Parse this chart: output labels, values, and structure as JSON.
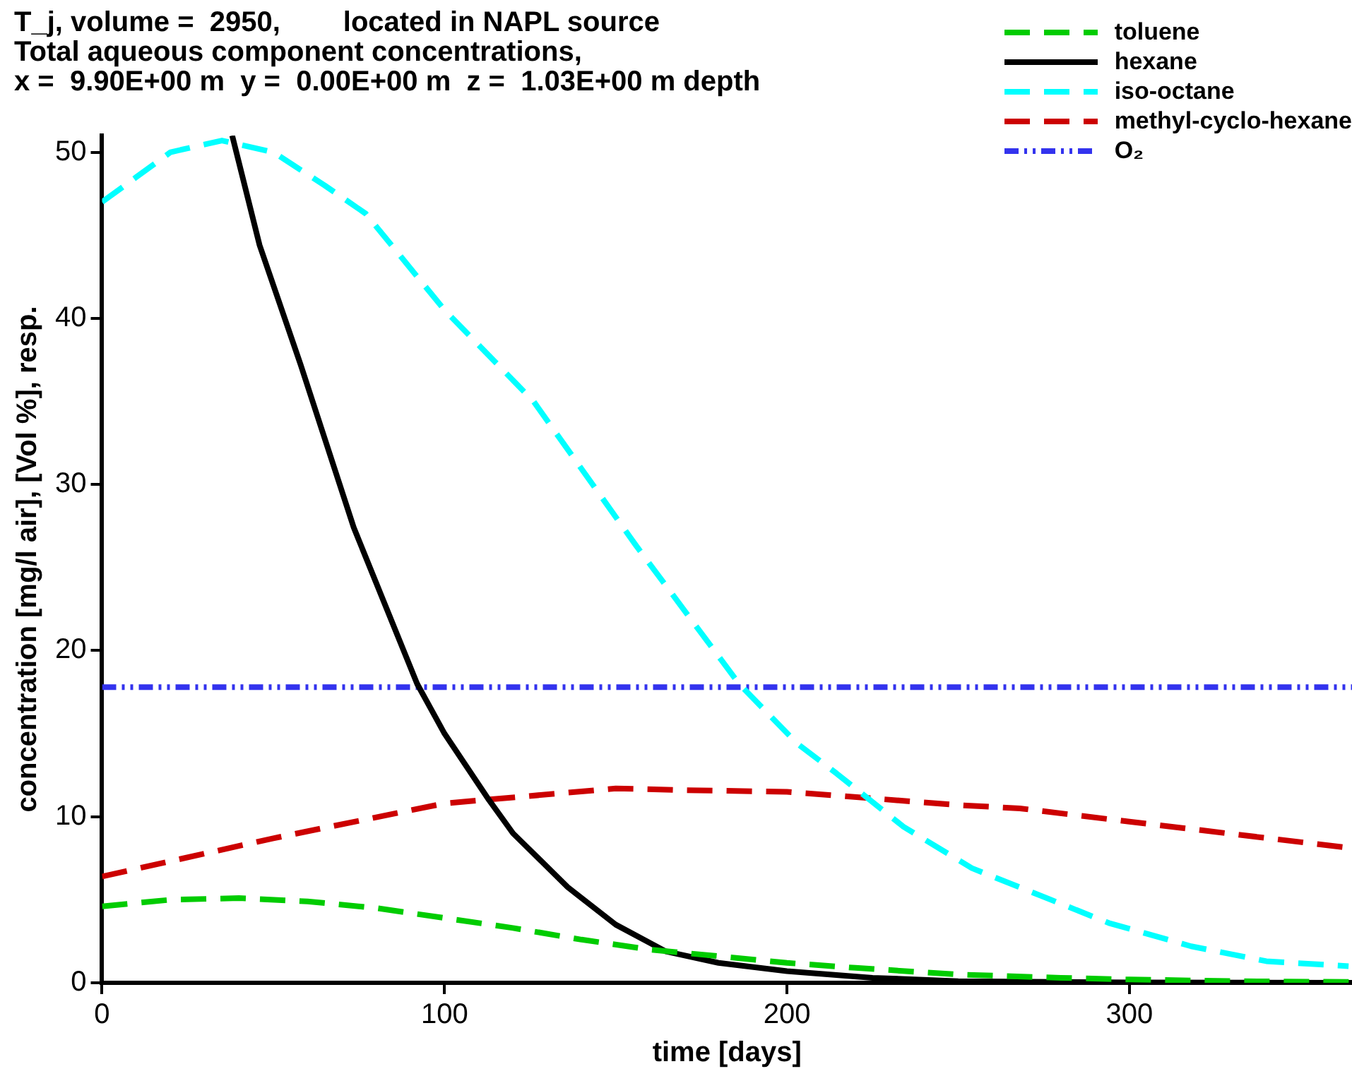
{
  "chart_data": {
    "type": "line",
    "title": "T_j, volume =  2950,        located in NAPL source\nTotal aqueous component concentrations,\nx =  9.90E+00 m  y =  0.00E+00 m  z =  1.03E+00 m depth",
    "xlabel": "time [days]",
    "ylabel": "concentration [mg/l air], [Vol %], resp.",
    "xlim": [
      0,
      365
    ],
    "ylim": [
      0,
      51
    ],
    "xticks": [
      0,
      100,
      200,
      300
    ],
    "yticks": [
      0,
      10,
      20,
      30,
      40,
      50
    ],
    "grid": false,
    "legend": "top right",
    "marker": "none",
    "series": [
      {
        "name": "toluene",
        "color": "#00cc00",
        "line_style": "dashed",
        "x": [
          0,
          20,
          40,
          60,
          80,
          100,
          120,
          140,
          160,
          180,
          200,
          220,
          250,
          280,
          300,
          330,
          365
        ],
        "values": [
          4.6,
          5.0,
          5.1,
          4.9,
          4.5,
          3.9,
          3.3,
          2.6,
          2.0,
          1.6,
          1.2,
          0.9,
          0.5,
          0.3,
          0.2,
          0.1,
          0.05
        ]
      },
      {
        "name": "hexane",
        "color": "#000000",
        "line_style": "solid",
        "x": [
          38,
          46,
          58,
          73.5,
          92,
          100,
          113,
          120,
          136,
          150,
          164.5,
          180,
          200,
          225,
          250,
          300,
          365
        ],
        "values": [
          51,
          44.4,
          37.2,
          27.4,
          18,
          15,
          11,
          9,
          5.75,
          3.5,
          1.9,
          1.2,
          0.7,
          0.3,
          0.1,
          0.02,
          0
        ]
      },
      {
        "name": "iso-octane",
        "color": "#00ffff",
        "line_style": "dashed",
        "x": [
          0,
          10,
          20,
          35,
          50,
          65,
          77,
          100,
          126,
          156,
          186,
          203,
          214.5,
          234,
          254,
          271,
          294,
          318,
          340,
          364
        ],
        "values": [
          47,
          48.5,
          50,
          50.7,
          50,
          48,
          46.3,
          40.5,
          35,
          26.3,
          18,
          14.4,
          12.6,
          9.4,
          6.9,
          5.5,
          3.6,
          2.2,
          1.3,
          1.0
        ]
      },
      {
        "name": "methyl-cyclo-hexane",
        "color": "#cc0000",
        "line_style": "dashed",
        "x": [
          0,
          50,
          100,
          150,
          169,
          200,
          250,
          268,
          300,
          365
        ],
        "values": [
          6.4,
          8.7,
          10.8,
          11.7,
          11.6,
          11.5,
          10.7,
          10.5,
          9.7,
          8.1
        ]
      },
      {
        "name": "O₂",
        "color": "#3333ee",
        "line_style": "dotted",
        "x": [
          0,
          365
        ],
        "values": [
          17.8,
          17.8
        ]
      }
    ]
  }
}
